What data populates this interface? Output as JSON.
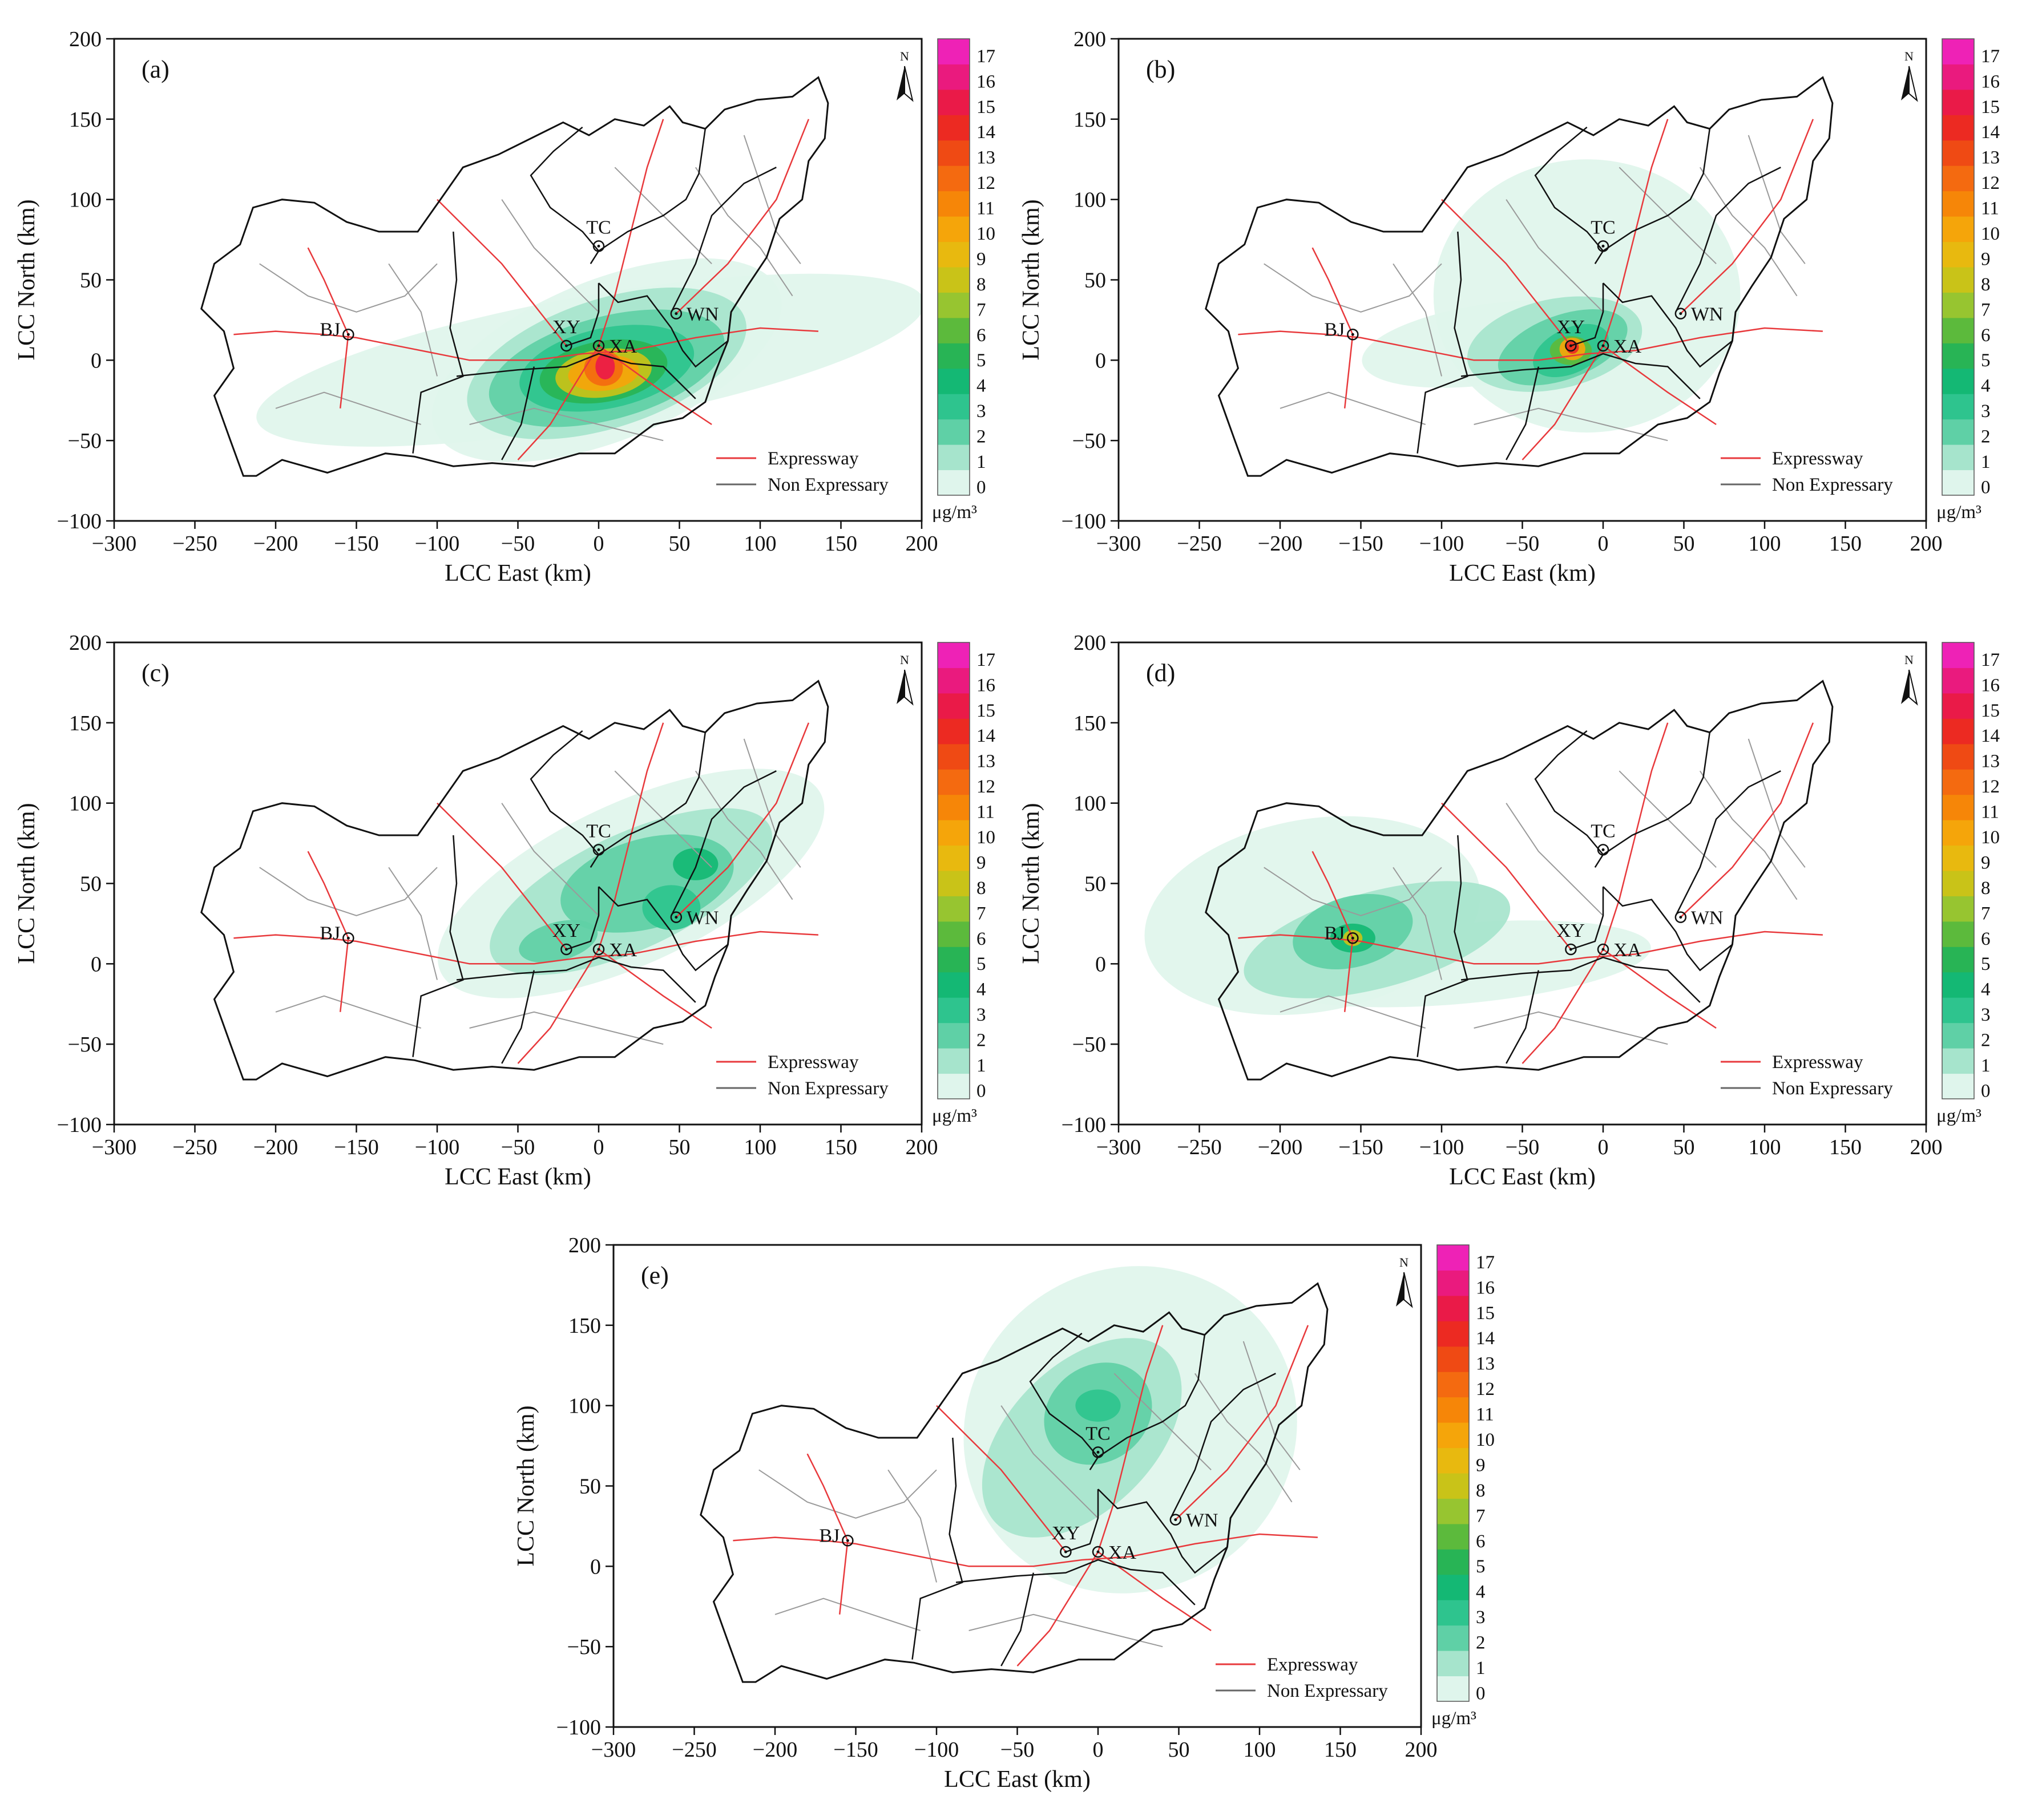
{
  "chart_data": {
    "type": "contour-map",
    "title": "",
    "xlabel": "LCC East (km)",
    "ylabel": "LCC North (km)",
    "xlim": [
      -300,
      200
    ],
    "ylim": [
      -100,
      200
    ],
    "x_ticks": [
      -300,
      -250,
      -200,
      -150,
      -100,
      -50,
      0,
      50,
      100,
      150,
      200
    ],
    "y_ticks": [
      -100,
      -50,
      0,
      50,
      100,
      150,
      200
    ],
    "x_tick_labels": [
      "−300",
      "−250",
      "−200",
      "−150",
      "−100",
      "−50",
      "0",
      "50",
      "100",
      "150",
      "200"
    ],
    "y_tick_labels": [
      "−100",
      "−50",
      "0",
      "50",
      "100",
      "150",
      "200"
    ],
    "colorbar": {
      "unit": "μg/m³",
      "levels": [
        0,
        1,
        2,
        3,
        4,
        5,
        6,
        7,
        8,
        9,
        10,
        11,
        12,
        13,
        14,
        15,
        16,
        17
      ],
      "level_labels": [
        "0",
        "1",
        "2",
        "3",
        "4",
        "5",
        "6",
        "7",
        "8",
        "9",
        "10",
        "11",
        "12",
        "13",
        "14",
        "15",
        "16",
        "17"
      ],
      "colors": [
        "#dff5ec",
        "#a6e4cc",
        "#5fd0a6",
        "#2ec48e",
        "#14b874",
        "#28b455",
        "#5cba3c",
        "#97c530",
        "#c9c318",
        "#e8b90f",
        "#f5a50a",
        "#f68608",
        "#f46a10",
        "#ef4a14",
        "#ec2a22",
        "#ea1a48",
        "#ea1a7e",
        "#ee22b6"
      ]
    },
    "legend": {
      "position": "bottom-right",
      "entries": [
        {
          "label": "Expressway",
          "color": "#e8393c"
        },
        {
          "label": "Non Expressary",
          "color": "#666666"
        }
      ]
    },
    "north_arrow_label": "N",
    "cities": [
      {
        "name": "BJ",
        "x": -155,
        "y": 16
      },
      {
        "name": "XY",
        "x": -20,
        "y": 9
      },
      {
        "name": "XA",
        "x": 0,
        "y": 9
      },
      {
        "name": "TC",
        "x": 0,
        "y": 71
      },
      {
        "name": "WN",
        "x": 48,
        "y": 29
      }
    ],
    "panels": [
      {
        "label": "(a)",
        "source": "XA",
        "plume": [
          {
            "x": 5,
            "y": 0,
            "rx": 115,
            "ry": 50,
            "rot": -22,
            "level": 0
          },
          {
            "x": -5,
            "y": 0,
            "rx": 210,
            "ry": 40,
            "rot": -10,
            "level": 0
          },
          {
            "x": 5,
            "y": -2,
            "rx": 90,
            "ry": 40,
            "rot": -18,
            "level": 1
          },
          {
            "x": 5,
            "y": -5,
            "rx": 75,
            "ry": 32,
            "rot": -15,
            "level": 2
          },
          {
            "x": 5,
            "y": -5,
            "rx": 55,
            "ry": 25,
            "rot": -12,
            "level": 3
          },
          {
            "x": 3,
            "y": -7,
            "rx": 40,
            "ry": 19,
            "rot": -10,
            "level": 5
          },
          {
            "x": 3,
            "y": -8,
            "rx": 30,
            "ry": 15,
            "rot": -8,
            "level": 8
          },
          {
            "x": 3,
            "y": -8,
            "rx": 22,
            "ry": 11,
            "rot": -6,
            "level": 10
          },
          {
            "x": 3,
            "y": -5,
            "rx": 12,
            "ry": 11,
            "rot": 0,
            "level": 12
          },
          {
            "x": 4,
            "y": -4,
            "rx": 6,
            "ry": 8,
            "rot": 0,
            "level": 15
          }
        ]
      },
      {
        "label": "(b)",
        "source": "XY",
        "plume": [
          {
            "x": -10,
            "y": 40,
            "rx": 95,
            "ry": 85,
            "rot": 0,
            "level": 0
          },
          {
            "x": -70,
            "y": 10,
            "rx": 80,
            "ry": 25,
            "rot": -8,
            "level": 0
          },
          {
            "x": -30,
            "y": 10,
            "rx": 55,
            "ry": 28,
            "rot": -12,
            "level": 1
          },
          {
            "x": -25,
            "y": 8,
            "rx": 42,
            "ry": 20,
            "rot": -20,
            "level": 2
          },
          {
            "x": -20,
            "y": 6,
            "rx": 25,
            "ry": 14,
            "rot": -25,
            "level": 3
          },
          {
            "x": -20,
            "y": 6,
            "rx": 13,
            "ry": 9,
            "rot": 0,
            "level": 6
          },
          {
            "x": -19,
            "y": 7,
            "rx": 8,
            "ry": 7,
            "rot": 0,
            "level": 10
          },
          {
            "x": -19,
            "y": 8,
            "rx": 4,
            "ry": 4,
            "rot": 0,
            "level": 14
          }
        ]
      },
      {
        "label": "(c)",
        "source": "WN",
        "plume": [
          {
            "x": 20,
            "y": 50,
            "rx": 130,
            "ry": 50,
            "rot": -25,
            "level": 0
          },
          {
            "x": 20,
            "y": 45,
            "rx": 95,
            "ry": 36,
            "rot": -25,
            "level": 1
          },
          {
            "x": 30,
            "y": 50,
            "rx": 55,
            "ry": 28,
            "rot": -15,
            "level": 2
          },
          {
            "x": 45,
            "y": 35,
            "rx": 18,
            "ry": 14,
            "rot": 0,
            "level": 3
          },
          {
            "x": 60,
            "y": 62,
            "rx": 14,
            "ry": 10,
            "rot": 0,
            "level": 4
          },
          {
            "x": -25,
            "y": 14,
            "rx": 25,
            "ry": 12,
            "rot": -15,
            "level": 2
          }
        ]
      },
      {
        "label": "(d)",
        "source": "BJ",
        "plume": [
          {
            "x": -180,
            "y": 30,
            "rx": 105,
            "ry": 60,
            "rot": -10,
            "level": 0
          },
          {
            "x": -90,
            "y": 0,
            "rx": 120,
            "ry": 25,
            "rot": -5,
            "level": 0
          },
          {
            "x": -140,
            "y": 15,
            "rx": 85,
            "ry": 30,
            "rot": -15,
            "level": 1
          },
          {
            "x": -155,
            "y": 20,
            "rx": 38,
            "ry": 22,
            "rot": -15,
            "level": 2
          },
          {
            "x": -155,
            "y": 16,
            "rx": 14,
            "ry": 9,
            "rot": 0,
            "level": 4
          },
          {
            "x": -155,
            "y": 16,
            "rx": 6,
            "ry": 5,
            "rot": 0,
            "level": 8
          }
        ]
      },
      {
        "label": "(e)",
        "source": "TC",
        "plume": [
          {
            "x": 20,
            "y": 85,
            "rx": 105,
            "ry": 100,
            "rot": -35,
            "level": 0
          },
          {
            "x": -10,
            "y": 80,
            "rx": 75,
            "ry": 45,
            "rot": -45,
            "level": 1
          },
          {
            "x": 0,
            "y": 95,
            "rx": 35,
            "ry": 30,
            "rot": -35,
            "level": 2
          },
          {
            "x": 0,
            "y": 100,
            "rx": 14,
            "ry": 10,
            "rot": 0,
            "level": 3
          }
        ]
      }
    ]
  }
}
